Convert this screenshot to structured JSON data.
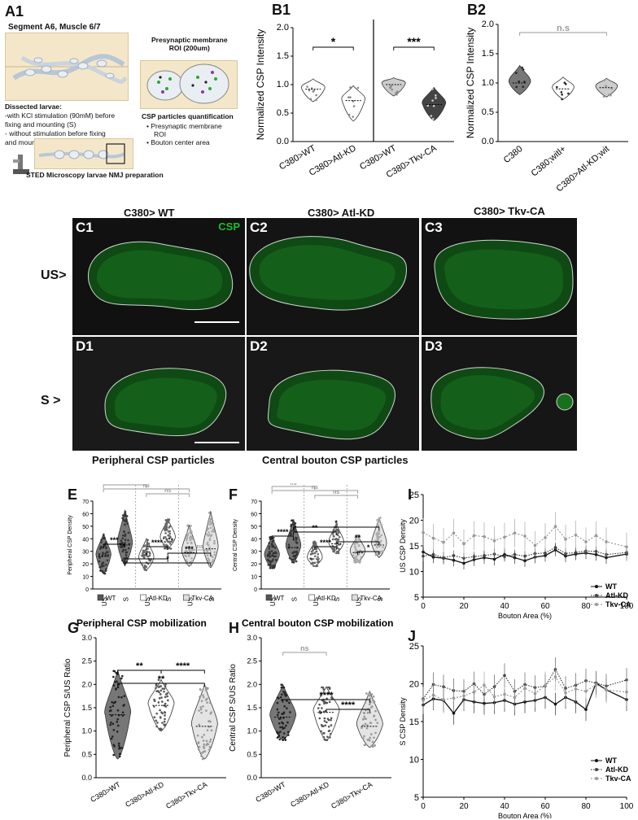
{
  "panels": {
    "A1": {
      "label": "A1",
      "segment_title": "Segment A6, Muscle 6/7",
      "roi_title": "Presynaptic membrane",
      "roi_sub": "ROI (200um)",
      "dissected_title": "Dissected larvae:",
      "dissected_line1": "-with KCl stimulation (90mM) before",
      "dissected_line2": "fixing and mounting (S)",
      "dissected_line3": "- without stimulation before fixing",
      "dissected_line4": "and mounting (US)",
      "quant_title": "CSP particles quantification",
      "quant_item1": "Presynaptic membrane",
      "quant_item1b": "ROI",
      "quant_item2": "Bouton center area",
      "sted_title": "STED Microscopy larvae NMJ preparation"
    },
    "B1": {
      "label": "B1",
      "ylabel": "Normalized CSP Intensity"
    },
    "B2": {
      "label": "B2",
      "ylabel": "Normalized CSP Intensity"
    },
    "C": {
      "col1": "C380> WT",
      "col2": "C380> Atl-KD",
      "col3": "C380> Tkv-CA",
      "c1": "C1",
      "c2": "C2",
      "c3": "C3",
      "csp": "CSP",
      "row": "US>"
    },
    "D": {
      "d1": "D1",
      "d2": "D2",
      "d3": "D3",
      "row": "S >",
      "caption_left": "Peripheral CSP particles",
      "caption_right": "Central bouton CSP particles"
    },
    "E": {
      "label": "E",
      "ylabel": "Peripheral CSP Density"
    },
    "F": {
      "label": "F",
      "ylabel": "Central CSP Density"
    },
    "G": {
      "label": "G",
      "title": "Peripheral CSP mobilization",
      "ylabel": "Peripheral CSP S/US Ratio"
    },
    "H": {
      "label": "H",
      "title": "Central bouton CSP mobilization",
      "ylabel": "Central CSP S/US Ratio"
    },
    "I": {
      "label": "I",
      "ylabel": "US CSP Density",
      "xlabel": "Bouton Area (%)"
    },
    "J": {
      "label": "J",
      "ylabel": "S CSP Density",
      "xlabel": "Bouton Area (%)"
    }
  },
  "chart_data": [
    {
      "id": "B1",
      "type": "violin",
      "ylabel": "Normalized CSP Intensity",
      "ylim": [
        0.0,
        2.0
      ],
      "yticks": [
        "0.0",
        "0.5",
        "1.0",
        "1.5",
        "2.0"
      ],
      "categories": [
        "C380>WT",
        "C380>Atl-KD",
        "C380>WT",
        "C380>Tkv-CA"
      ],
      "medians": [
        0.92,
        0.72,
        1.0,
        0.65
      ],
      "significance": [
        {
          "pair": [
            0,
            1
          ],
          "text": "*"
        },
        {
          "pair": [
            2,
            3
          ],
          "text": "***"
        }
      ]
    },
    {
      "id": "B2",
      "type": "violin",
      "ylabel": "Normalized CSP Intensity",
      "ylim": [
        0.0,
        2.0
      ],
      "yticks": [
        "0.0",
        "0.5",
        "1.0",
        "1.5",
        "2.0"
      ],
      "categories": [
        "C380",
        "C380;witl+",
        "C380>Atl-KD;wit"
      ],
      "medians": [
        1.0,
        0.9,
        0.92
      ],
      "significance": [
        {
          "pair": [
            0,
            2
          ],
          "text": "n.s"
        }
      ]
    },
    {
      "id": "E",
      "type": "violin",
      "ylabel": "Peripheral CSP Density",
      "ylim": [
        0,
        70
      ],
      "yticks": [
        "0",
        "10",
        "20",
        "30",
        "40",
        "50",
        "60",
        "70"
      ],
      "categories": [
        "US",
        "S",
        "US",
        "S",
        "US",
        "S"
      ],
      "legend": [
        "WT",
        "Atl-KD",
        "Tkv-CA"
      ],
      "medians": [
        26,
        35,
        24,
        40,
        29,
        32
      ],
      "significance": [
        {
          "pair": [
            0,
            1
          ],
          "text": "***"
        },
        {
          "pair": [
            2,
            3
          ],
          "text": "****"
        },
        {
          "pair": [
            4,
            5
          ],
          "text": "ns"
        },
        {
          "pair": [
            1,
            3
          ],
          "text": "*"
        },
        {
          "pair": [
            3,
            5
          ],
          "text": "***"
        },
        {
          "pair": [
            1,
            5
          ],
          "text": "*"
        },
        {
          "pair": [
            0,
            2
          ],
          "text": "ns"
        },
        {
          "pair": [
            0,
            4
          ],
          "text": "ns"
        },
        {
          "pair": [
            2,
            4
          ],
          "text": "ns"
        }
      ]
    },
    {
      "id": "F",
      "type": "violin",
      "ylabel": "Central CSP Density",
      "ylim": [
        0,
        70
      ],
      "yticks": [
        "0",
        "10",
        "20",
        "30",
        "40",
        "50",
        "60",
        "70"
      ],
      "categories": [
        "US",
        "S",
        "US",
        "S",
        "US",
        "S"
      ],
      "legend": [
        "WT",
        "Atl-KD",
        "Tkv-CA"
      ],
      "medians": [
        26,
        33,
        24,
        36,
        29,
        35
      ],
      "significance": [
        {
          "pair": [
            0,
            1
          ],
          "text": "****"
        },
        {
          "pair": [
            2,
            3
          ],
          "text": "****"
        },
        {
          "pair": [
            4,
            5
          ],
          "text": "*"
        },
        {
          "pair": [
            1,
            3
          ],
          "text": "**"
        },
        {
          "pair": [
            3,
            5
          ],
          "text": "**"
        },
        {
          "pair": [
            1,
            5
          ],
          "text": "*"
        },
        {
          "pair": [
            0,
            2
          ],
          "text": "ns"
        },
        {
          "pair": [
            0,
            4
          ],
          "text": "ns"
        },
        {
          "pair": [
            2,
            4
          ],
          "text": "ns"
        }
      ]
    },
    {
      "id": "G",
      "type": "violin",
      "title": "Peripheral CSP mobilization",
      "ylabel": "Peripheral CSP S/US Ratio",
      "ylim": [
        0.0,
        3.0
      ],
      "yticks": [
        "0.0",
        "0.5",
        "1.0",
        "1.5",
        "2.0",
        "2.5",
        "3.0"
      ],
      "categories": [
        "C380>WT",
        "C380>Atl-KD",
        "C380>Tkv-CA"
      ],
      "medians": [
        1.35,
        1.55,
        1.1
      ],
      "significance": [
        {
          "pair": [
            0,
            1
          ],
          "text": "**"
        },
        {
          "pair": [
            1,
            2
          ],
          "text": "****"
        },
        {
          "pair": [
            0,
            2
          ],
          "text": "**"
        }
      ]
    },
    {
      "id": "H",
      "type": "violin",
      "title": "Central bouton CSP mobilization",
      "ylabel": "Central CSP S/US Ratio",
      "ylim": [
        0.0,
        3.0
      ],
      "yticks": [
        "0.0",
        "0.5",
        "1.0",
        "1.5",
        "2.0",
        "2.5",
        "3.0"
      ],
      "categories": [
        "C380>WT",
        "C380>Atl-KD",
        "C380>Tkv-CA"
      ],
      "medians": [
        1.3,
        1.4,
        1.1
      ],
      "significance": [
        {
          "pair": [
            0,
            1
          ],
          "text": "ns"
        },
        {
          "pair": [
            0,
            2
          ],
          "text": "****"
        },
        {
          "pair": [
            1,
            2
          ],
          "text": "****"
        }
      ]
    },
    {
      "id": "I",
      "type": "line",
      "ylabel": "US CSP Density",
      "xlabel": "Bouton Area (%)",
      "xlim": [
        0,
        100
      ],
      "ylim": [
        5,
        25
      ],
      "xticks": [
        "0",
        "20",
        "40",
        "60",
        "80",
        "100"
      ],
      "yticks": [
        "5",
        "10",
        "15",
        "20",
        "25"
      ],
      "x": [
        0,
        5,
        10,
        15,
        20,
        25,
        30,
        35,
        40,
        45,
        50,
        55,
        60,
        65,
        70,
        75,
        80,
        85,
        90,
        100
      ],
      "series": [
        {
          "name": "WT",
          "values": [
            13.8,
            12.8,
            12.6,
            12.2,
            11.6,
            12.3,
            12.7,
            12.4,
            13.3,
            12.7,
            12.1,
            12.8,
            13.1,
            14.2,
            13.0,
            13.4,
            13.6,
            13.3,
            12.7,
            13.4
          ]
        },
        {
          "name": "Atl-KD",
          "values": [
            13.0,
            13.3,
            12.7,
            13.1,
            12.6,
            12.9,
            13.1,
            13.4,
            12.9,
            13.3,
            13.0,
            13.5,
            13.6,
            14.7,
            13.5,
            13.7,
            14.0,
            13.9,
            13.3,
            13.7
          ]
        },
        {
          "name": "Tkv-CA",
          "values": [
            17.6,
            16.5,
            15.7,
            17.5,
            15.4,
            17.0,
            16.8,
            16.0,
            16.7,
            17.5,
            16.9,
            15.1,
            16.6,
            18.8,
            16.3,
            17.1,
            15.8,
            17.0,
            15.8,
            14.8
          ]
        }
      ],
      "legend": [
        "WT",
        "Atl-KD",
        "Tkv-CA"
      ]
    },
    {
      "id": "J",
      "type": "line",
      "ylabel": "S CSP Density",
      "xlabel": "Bouton Area (%)",
      "xlim": [
        0,
        100
      ],
      "ylim": [
        5,
        25
      ],
      "xticks": [
        "0",
        "20",
        "40",
        "60",
        "80",
        "100"
      ],
      "yticks": [
        "5",
        "10",
        "15",
        "20",
        "25"
      ],
      "x": [
        0,
        5,
        10,
        15,
        20,
        25,
        30,
        35,
        40,
        45,
        50,
        55,
        60,
        65,
        70,
        75,
        80,
        85,
        90,
        100
      ],
      "series": [
        {
          "name": "WT",
          "values": [
            17.2,
            18.0,
            17.8,
            16.1,
            17.9,
            17.6,
            17.4,
            17.5,
            17.8,
            17.3,
            17.6,
            17.8,
            18.2,
            17.3,
            18.2,
            17.6,
            16.6,
            20.1,
            19.2,
            17.9
          ]
        },
        {
          "name": "Atl-KD",
          "values": [
            18.0,
            19.9,
            19.6,
            19.1,
            19.0,
            20.0,
            18.6,
            19.6,
            21.1,
            19.0,
            19.9,
            19.5,
            19.7,
            21.9,
            19.4,
            19.8,
            20.4,
            20.1,
            19.7,
            20.5
          ]
        },
        {
          "name": "Tkv-CA",
          "values": [
            17.8,
            18.5,
            17.9,
            18.1,
            18.4,
            18.9,
            19.8,
            18.3,
            18.6,
            18.2,
            19.4,
            18.7,
            19.8,
            20.9,
            18.8,
            19.3,
            19.0,
            19.9,
            19.2,
            18.9
          ]
        }
      ],
      "legend": [
        "WT",
        "Atl-KD",
        "Tkv-CA"
      ]
    }
  ]
}
